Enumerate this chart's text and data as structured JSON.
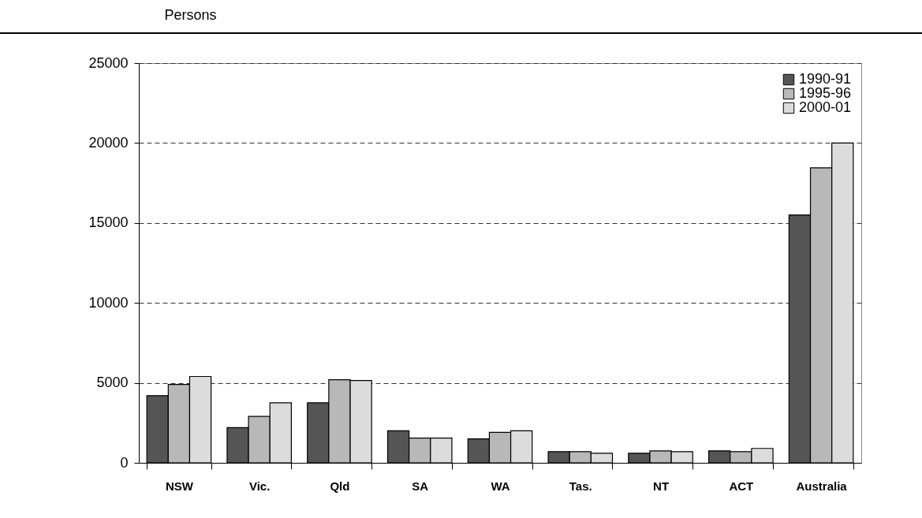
{
  "chart_data": {
    "type": "bar",
    "ylabel": "Persons",
    "categories": [
      "NSW",
      "Vic.",
      "Qld",
      "SA",
      "WA",
      "Tas.",
      "NT",
      "ACT",
      "Australia"
    ],
    "series": [
      {
        "name": "1990-91",
        "color": "#555555",
        "values": [
          4200,
          2200,
          3750,
          2000,
          1500,
          700,
          600,
          750,
          15500
        ]
      },
      {
        "name": "1995-96",
        "color": "#b8b8b8",
        "values": [
          4900,
          2900,
          5200,
          1550,
          1900,
          700,
          750,
          700,
          18450
        ]
      },
      {
        "name": "2000-01",
        "color": "#dcdcdc",
        "values": [
          5400,
          3750,
          5150,
          1550,
          2000,
          600,
          700,
          900,
          20000
        ]
      }
    ],
    "ylim": [
      0,
      25000
    ],
    "yticks": [
      0,
      5000,
      10000,
      15000,
      20000,
      25000
    ],
    "grid": "y",
    "legend": "top right"
  }
}
